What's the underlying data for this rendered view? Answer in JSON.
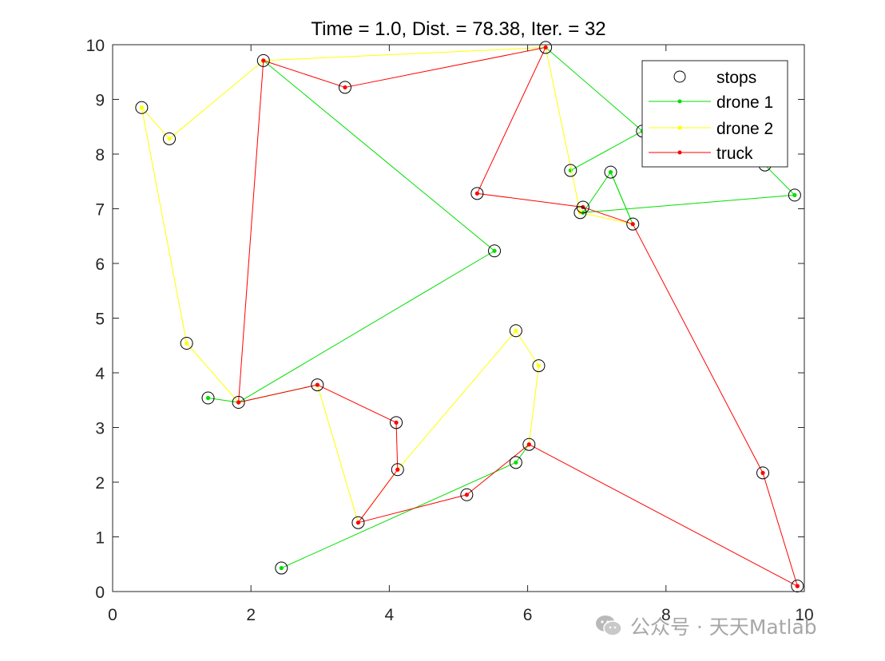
{
  "chart_data": {
    "type": "line",
    "title": "Time = 1.0, Dist. = 78.38, Iter. = 32",
    "xlim": [
      0,
      10
    ],
    "ylim": [
      0,
      10
    ],
    "xticks": [
      0,
      2,
      4,
      6,
      8,
      10
    ],
    "yticks": [
      0,
      1,
      2,
      3,
      4,
      5,
      6,
      7,
      8,
      9,
      10
    ],
    "grid": false,
    "legend": {
      "placement": "top-right"
    },
    "stops": {
      "name": "stops",
      "marker": "circle",
      "color": "#000000",
      "points": [
        [
          0.42,
          8.85
        ],
        [
          0.82,
          8.28
        ],
        [
          2.18,
          9.71
        ],
        [
          3.36,
          9.22
        ],
        [
          6.26,
          9.95
        ],
        [
          7.66,
          8.42
        ],
        [
          9.43,
          7.8
        ],
        [
          9.86,
          7.25
        ],
        [
          7.2,
          7.67
        ],
        [
          6.62,
          7.7
        ],
        [
          5.27,
          7.28
        ],
        [
          6.8,
          7.03
        ],
        [
          6.76,
          6.93
        ],
        [
          7.52,
          6.72
        ],
        [
          5.52,
          6.23
        ],
        [
          1.07,
          4.54
        ],
        [
          1.38,
          3.54
        ],
        [
          1.82,
          3.46
        ],
        [
          2.96,
          3.78
        ],
        [
          5.83,
          4.77
        ],
        [
          6.16,
          4.13
        ],
        [
          4.1,
          3.09
        ],
        [
          4.12,
          2.23
        ],
        [
          6.02,
          2.69
        ],
        [
          5.83,
          2.36
        ],
        [
          5.12,
          1.77
        ],
        [
          3.55,
          1.26
        ],
        [
          2.44,
          0.43
        ],
        [
          9.4,
          2.17
        ],
        [
          9.9,
          0.1
        ]
      ]
    },
    "series": [
      {
        "name": "drone 1",
        "color": "#00e000",
        "points": [
          [
            6.26,
            9.95
          ],
          [
            7.66,
            8.42
          ],
          [
            6.62,
            7.7
          ],
          [
            7.66,
            8.42
          ],
          [
            9.43,
            7.8
          ],
          [
            9.86,
            7.25
          ],
          [
            6.8,
            6.93
          ],
          [
            7.2,
            7.67
          ],
          [
            7.52,
            6.72
          ],
          [
            2.18,
            9.71
          ],
          [
            5.52,
            6.23
          ],
          [
            1.82,
            3.46
          ],
          [
            1.38,
            3.54
          ],
          [
            2.96,
            3.78
          ],
          [
            2.44,
            0.43
          ],
          [
            5.83,
            2.36
          ],
          [
            6.02,
            2.69
          ]
        ],
        "segments": [
          [
            0,
            1
          ],
          [
            1,
            2
          ],
          [
            1,
            4
          ],
          [
            4,
            5
          ],
          [
            5,
            6
          ],
          [
            7,
            8
          ],
          [
            7,
            6
          ],
          [
            8,
            7
          ],
          [
            9,
            10
          ],
          [
            10,
            11
          ],
          [
            11,
            12
          ],
          [
            11,
            13
          ],
          [
            14,
            15
          ],
          [
            15,
            16
          ]
        ]
      },
      {
        "name": "drone 2",
        "color": "#ffff00",
        "points": [
          [
            2.18,
            9.71
          ],
          [
            0.82,
            8.28
          ],
          [
            0.42,
            8.85
          ],
          [
            1.07,
            4.54
          ],
          [
            1.82,
            3.46
          ],
          [
            2.18,
            9.71
          ],
          [
            6.26,
            9.95
          ],
          [
            6.76,
            6.93
          ],
          [
            7.52,
            6.72
          ],
          [
            2.96,
            3.78
          ],
          [
            3.55,
            1.26
          ],
          [
            4.12,
            2.23
          ],
          [
            5.83,
            4.77
          ],
          [
            6.16,
            4.13
          ],
          [
            6.02,
            2.69
          ]
        ],
        "segments": [
          [
            0,
            1
          ],
          [
            1,
            2
          ],
          [
            2,
            3
          ],
          [
            3,
            4
          ],
          [
            5,
            6
          ],
          [
            6,
            7
          ],
          [
            7,
            8
          ],
          [
            9,
            10
          ],
          [
            10,
            11
          ],
          [
            11,
            12
          ],
          [
            12,
            13
          ],
          [
            13,
            14
          ]
        ]
      },
      {
        "name": "truck",
        "color": "#ff0000",
        "points": [
          [
            9.9,
            0.1
          ],
          [
            9.4,
            2.17
          ],
          [
            7.52,
            6.72
          ],
          [
            6.8,
            7.03
          ],
          [
            5.27,
            7.28
          ],
          [
            6.26,
            9.95
          ],
          [
            3.36,
            9.22
          ],
          [
            2.18,
            9.71
          ],
          [
            1.82,
            3.46
          ],
          [
            2.96,
            3.78
          ],
          [
            4.1,
            3.09
          ],
          [
            4.12,
            2.23
          ],
          [
            3.55,
            1.26
          ],
          [
            5.12,
            1.77
          ],
          [
            6.02,
            2.69
          ],
          [
            9.9,
            0.1
          ]
        ]
      }
    ]
  },
  "watermark": {
    "text": "公众号 · 天天Matlab"
  }
}
